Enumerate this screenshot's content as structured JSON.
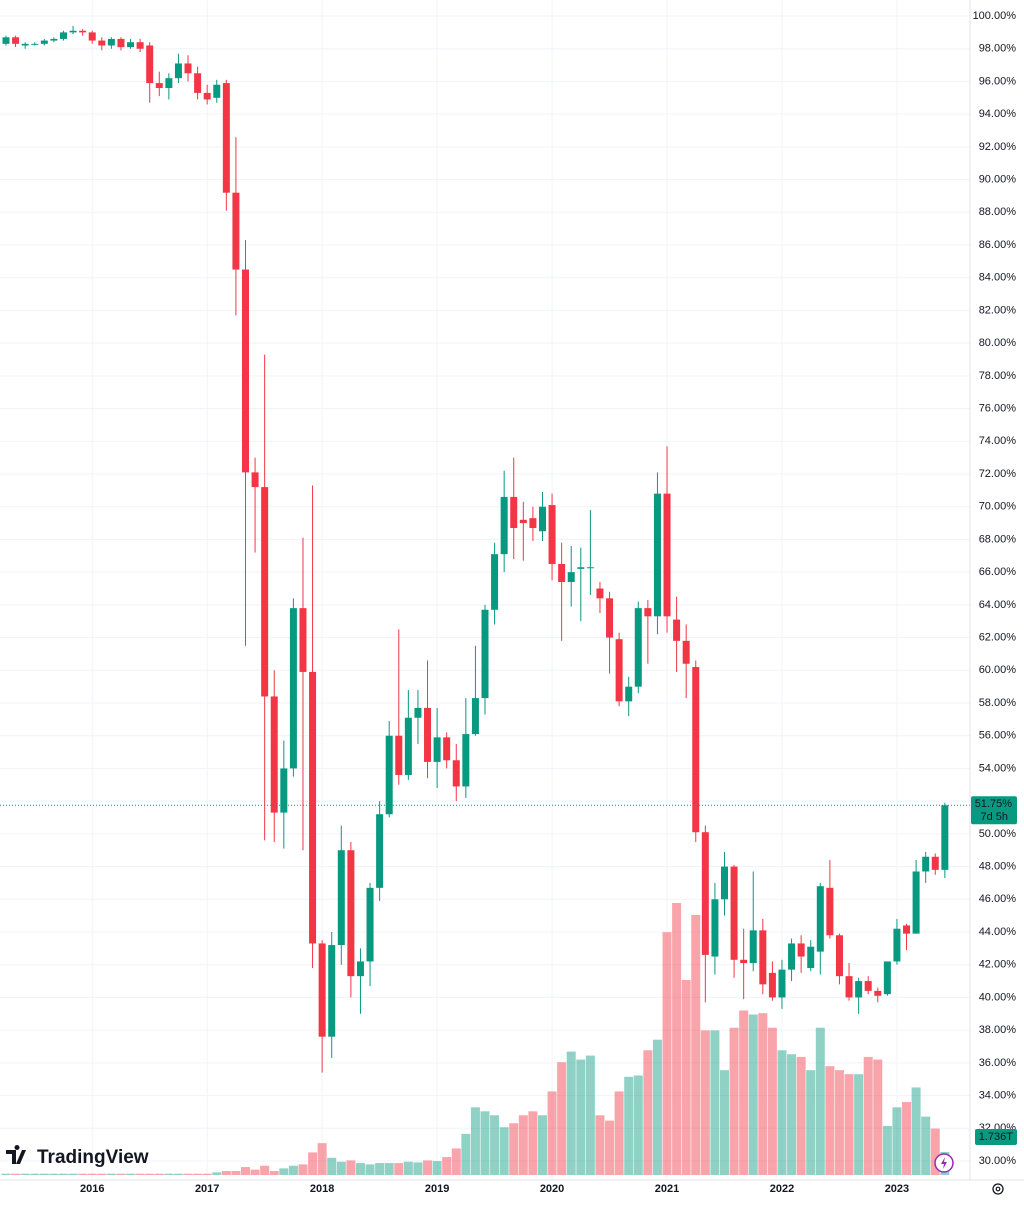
{
  "chart_data": {
    "type": "candlestick",
    "brand": "TradingView",
    "last_label": "51.75%",
    "countdown": "7d 5h",
    "volume_label": "1.736T",
    "up_color": "#089981",
    "down_color": "#f23645",
    "grid": true,
    "ylim": [
      28.96,
      100.98
    ],
    "yticks": [
      {
        "value": 30,
        "label": "30.00%"
      },
      {
        "value": 32,
        "label": "32.00%"
      },
      {
        "value": 34,
        "label": "34.00%"
      },
      {
        "value": 36,
        "label": "36.00%"
      },
      {
        "value": 38,
        "label": "38.00%"
      },
      {
        "value": 40,
        "label": "40.00%"
      },
      {
        "value": 42,
        "label": "42.00%"
      },
      {
        "value": 44,
        "label": "44.00%"
      },
      {
        "value": 46,
        "label": "46.00%"
      },
      {
        "value": 48,
        "label": "48.00%"
      },
      {
        "value": 50,
        "label": "50.00%"
      },
      {
        "value": 52,
        "label": "52.00%"
      },
      {
        "value": 54,
        "label": "54.00%"
      },
      {
        "value": 56,
        "label": "56.00%"
      },
      {
        "value": 58,
        "label": "58.00%"
      },
      {
        "value": 60,
        "label": "60.00%"
      },
      {
        "value": 62,
        "label": "62.00%"
      },
      {
        "value": 64,
        "label": "64.00%"
      },
      {
        "value": 66,
        "label": "66.00%"
      },
      {
        "value": 68,
        "label": "68.00%"
      },
      {
        "value": 70,
        "label": "70.00%"
      },
      {
        "value": 72,
        "label": "72.00%"
      },
      {
        "value": 74,
        "label": "74.00%"
      },
      {
        "value": 76,
        "label": "76.00%"
      },
      {
        "value": 78,
        "label": "78.00%"
      },
      {
        "value": 80,
        "label": "80.00%"
      },
      {
        "value": 82,
        "label": "82.00%"
      },
      {
        "value": 84,
        "label": "84.00%"
      },
      {
        "value": 86,
        "label": "86.00%"
      },
      {
        "value": 88,
        "label": "88.00%"
      },
      {
        "value": 90,
        "label": "90.00%"
      },
      {
        "value": 92,
        "label": "92.00%"
      },
      {
        "value": 94,
        "label": "94.00%"
      },
      {
        "value": 96,
        "label": "96.00%"
      },
      {
        "value": 98,
        "label": "98.00%"
      },
      {
        "value": 100,
        "label": "100.00%"
      }
    ],
    "categories": [
      null,
      null,
      null,
      null,
      null,
      null,
      null,
      null,
      null,
      "2016",
      null,
      null,
      null,
      null,
      null,
      null,
      null,
      null,
      null,
      null,
      null,
      "2017",
      null,
      null,
      null,
      null,
      null,
      null,
      null,
      null,
      null,
      null,
      null,
      "2018",
      null,
      null,
      null,
      null,
      null,
      null,
      null,
      null,
      null,
      null,
      null,
      "2019",
      null,
      null,
      null,
      null,
      null,
      null,
      null,
      null,
      null,
      null,
      null,
      "2020",
      null,
      null,
      null,
      null,
      null,
      null,
      null,
      null,
      null,
      null,
      null,
      "2021",
      null,
      null,
      null,
      null,
      null,
      null,
      null,
      null,
      null,
      null,
      null,
      "2022",
      null,
      null,
      null,
      null,
      null,
      null,
      null,
      null,
      null,
      null,
      null,
      "2023",
      null,
      null,
      null,
      null,
      null
    ],
    "open": [
      98.3,
      98.7,
      98.2,
      98.3,
      98.3,
      98.5,
      98.6,
      99.0,
      99.1,
      99.0,
      98.5,
      98.2,
      98.6,
      98.1,
      98.4,
      98.2,
      95.9,
      95.6,
      96.2,
      97.1,
      96.5,
      95.3,
      95.0,
      95.9,
      89.2,
      84.5,
      72.1,
      71.2,
      58.4,
      51.3,
      54.0,
      63.8,
      59.9,
      43.3,
      37.6,
      43.2,
      49.0,
      41.3,
      42.2,
      46.7,
      51.2,
      56.0,
      53.6,
      57.1,
      57.7,
      54.4,
      55.9,
      54.5,
      52.9,
      56.1,
      58.3,
      63.7,
      67.1,
      70.6,
      69.2,
      69.3,
      68.5,
      70.1,
      66.5,
      65.4,
      66.2,
      66.3,
      65.0,
      64.4,
      61.9,
      58.1,
      59.0,
      63.8,
      63.3,
      70.8,
      63.1,
      61.8,
      60.2,
      50.1,
      42.5,
      46.0,
      48.0,
      42.3,
      42.1,
      44.1,
      41.5,
      40.0,
      41.7,
      43.3,
      41.8,
      42.8,
      46.7,
      43.8,
      41.3,
      40.0,
      41.0,
      40.4,
      40.2,
      42.2,
      44.4,
      43.9,
      47.7,
      48.6,
      47.8
    ],
    "high": [
      98.8,
      98.8,
      98.4,
      98.4,
      98.6,
      98.7,
      99.1,
      99.4,
      99.2,
      99.1,
      98.7,
      98.7,
      98.7,
      98.6,
      98.6,
      98.4,
      96.6,
      96.5,
      97.7,
      97.6,
      96.9,
      95.8,
      96.1,
      96.1,
      92.6,
      86.3,
      73.0,
      79.3,
      60.0,
      55.7,
      64.4,
      68.1,
      71.3,
      43.5,
      44.0,
      50.5,
      49.5,
      43.0,
      47.0,
      52.0,
      56.9,
      62.5,
      58.8,
      58.8,
      60.6,
      57.7,
      56.2,
      55.5,
      58.3,
      61.5,
      64.0,
      67.8,
      72.2,
      73.0,
      70.3,
      70.0,
      70.9,
      70.8,
      67.8,
      67.6,
      67.5,
      69.8,
      65.4,
      64.8,
      62.3,
      59.6,
      64.2,
      64.3,
      72.1,
      73.7,
      64.5,
      62.8,
      60.6,
      50.5,
      47.0,
      48.9,
      48.1,
      44.2,
      47.7,
      44.8,
      42.2,
      42.3,
      43.6,
      43.8,
      43.5,
      47.0,
      48.4,
      43.9,
      42.1,
      41.2,
      41.3,
      40.6,
      42.2,
      44.8,
      44.5,
      48.4,
      48.9,
      48.8,
      51.9
    ],
    "low": [
      98.2,
      98.1,
      98.0,
      98.2,
      98.2,
      98.4,
      98.5,
      98.9,
      98.8,
      98.3,
      97.9,
      98.0,
      97.9,
      98.0,
      97.8,
      94.7,
      95.1,
      94.9,
      95.9,
      96.0,
      94.9,
      94.6,
      94.7,
      88.1,
      81.7,
      61.5,
      67.2,
      49.6,
      49.5,
      49.1,
      53.5,
      49.0,
      41.8,
      35.4,
      36.3,
      42.0,
      40.0,
      39.0,
      40.7,
      45.9,
      51.0,
      53.0,
      53.3,
      55.5,
      53.4,
      52.8,
      54.0,
      52.0,
      52.2,
      56.0,
      57.3,
      62.8,
      66.0,
      66.8,
      66.7,
      67.9,
      67.9,
      65.5,
      61.8,
      63.9,
      63.0,
      64.6,
      63.5,
      59.8,
      57.8,
      57.2,
      58.6,
      60.4,
      62.2,
      62.3,
      59.9,
      58.3,
      49.5,
      39.7,
      41.4,
      45.0,
      41.2,
      39.9,
      41.6,
      40.2,
      39.8,
      39.3,
      41.0,
      41.5,
      41.6,
      41.4,
      43.6,
      40.8,
      39.8,
      39.0,
      40.2,
      39.7,
      40.1,
      42.0,
      42.9,
      43.9,
      47.0,
      47.5,
      47.3
    ],
    "close": [
      98.7,
      98.3,
      98.3,
      98.3,
      98.5,
      98.6,
      99.0,
      99.1,
      99.0,
      98.5,
      98.2,
      98.6,
      98.1,
      98.4,
      98.0,
      95.9,
      95.6,
      96.2,
      97.1,
      96.5,
      95.3,
      94.9,
      95.8,
      89.2,
      84.5,
      72.1,
      71.2,
      58.4,
      51.3,
      54.0,
      63.8,
      59.9,
      43.3,
      37.6,
      43.2,
      49.0,
      41.3,
      42.2,
      46.7,
      51.2,
      56.0,
      53.6,
      57.1,
      57.7,
      54.4,
      55.9,
      54.5,
      52.9,
      56.1,
      58.3,
      63.7,
      67.1,
      70.6,
      68.7,
      69.0,
      68.7,
      70.0,
      66.5,
      65.4,
      66.0,
      66.3,
      66.3,
      64.4,
      62.0,
      58.1,
      59.0,
      63.8,
      63.3,
      70.8,
      63.3,
      61.8,
      60.4,
      50.1,
      42.6,
      46.0,
      48.0,
      42.3,
      42.1,
      44.1,
      40.8,
      40.0,
      41.7,
      43.3,
      42.5,
      43.1,
      46.8,
      43.8,
      41.3,
      40.0,
      41.0,
      40.4,
      40.1,
      42.2,
      44.2,
      43.9,
      47.7,
      48.6,
      47.8,
      51.75
    ],
    "volume": [
      0.1,
      0.1,
      0.1,
      0.1,
      0.1,
      0.1,
      0.1,
      0.1,
      0.1,
      0.1,
      0.1,
      0.1,
      0.1,
      0.1,
      0.1,
      0.1,
      0.1,
      0.1,
      0.1,
      0.1,
      0.1,
      0.1,
      0.2,
      0.3,
      0.3,
      0.6,
      0.4,
      0.7,
      0.3,
      0.5,
      0.7,
      0.8,
      1.7,
      2.4,
      1.3,
      1.0,
      1.1,
      0.9,
      0.8,
      0.9,
      0.9,
      0.9,
      1.0,
      0.95,
      1.1,
      1.05,
      1.35,
      2.0,
      3.1,
      5.1,
      4.8,
      4.5,
      3.6,
      3.9,
      4.5,
      4.8,
      4.5,
      6.3,
      8.5,
      9.3,
      8.7,
      9.0,
      4.5,
      4.1,
      6.3,
      7.4,
      7.5,
      9.4,
      10.2,
      18.3,
      20.5,
      14.7,
      19.6,
      10.9,
      10.9,
      7.9,
      11.1,
      12.4,
      12.1,
      12.2,
      11.1,
      9.4,
      9.1,
      8.9,
      7.9,
      11.1,
      8.2,
      7.9,
      7.6,
      7.6,
      8.9,
      8.7,
      3.7,
      5.1,
      5.5,
      6.6,
      4.4,
      3.5,
      1.736
    ]
  }
}
